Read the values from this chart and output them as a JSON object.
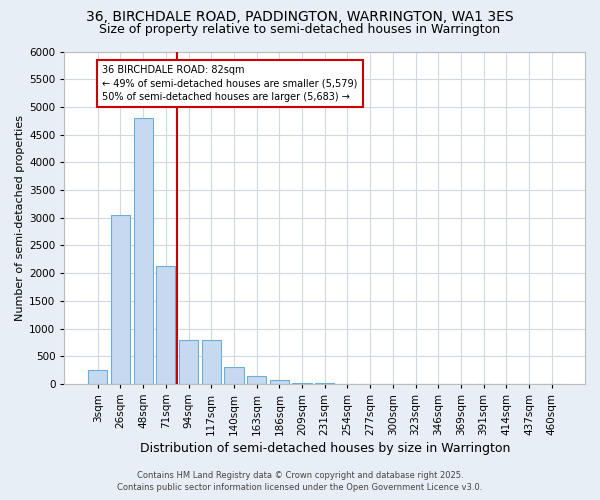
{
  "title1": "36, BIRCHDALE ROAD, PADDINGTON, WARRINGTON, WA1 3ES",
  "title2": "Size of property relative to semi-detached houses in Warrington",
  "xlabel": "Distribution of semi-detached houses by size in Warrington",
  "ylabel": "Number of semi-detached properties",
  "categories": [
    "3sqm",
    "26sqm",
    "48sqm",
    "71sqm",
    "94sqm",
    "117sqm",
    "140sqm",
    "163sqm",
    "186sqm",
    "209sqm",
    "231sqm",
    "254sqm",
    "277sqm",
    "300sqm",
    "323sqm",
    "346sqm",
    "369sqm",
    "391sqm",
    "414sqm",
    "437sqm",
    "460sqm"
  ],
  "bar_values": [
    250,
    3050,
    4800,
    2120,
    800,
    800,
    310,
    145,
    70,
    20,
    8,
    3,
    2,
    0,
    0,
    0,
    0,
    0,
    0,
    0,
    0
  ],
  "bar_color": "#c6d9f0",
  "bar_edge_color": "#6baed6",
  "vline_color": "#cc0000",
  "vline_x": 3.5,
  "annotation_text": "36 BIRCHDALE ROAD: 82sqm\n← 49% of semi-detached houses are smaller (5,579)\n50% of semi-detached houses are larger (5,683) →",
  "annotation_box_facecolor": "#ffffff",
  "annotation_box_edgecolor": "#cc0000",
  "ylim": [
    0,
    6000
  ],
  "yticks": [
    0,
    500,
    1000,
    1500,
    2000,
    2500,
    3000,
    3500,
    4000,
    4500,
    5000,
    5500,
    6000
  ],
  "footer1": "Contains HM Land Registry data © Crown copyright and database right 2025.",
  "footer2": "Contains public sector information licensed under the Open Government Licence v3.0.",
  "fig_facecolor": "#e8eef5",
  "plot_facecolor": "#ffffff",
  "grid_color": "#d0d8e8",
  "title1_fontsize": 10,
  "title2_fontsize": 9,
  "xlabel_fontsize": 9,
  "ylabel_fontsize": 8,
  "tick_fontsize": 7.5,
  "annot_fontsize": 7,
  "footer_fontsize": 6
}
